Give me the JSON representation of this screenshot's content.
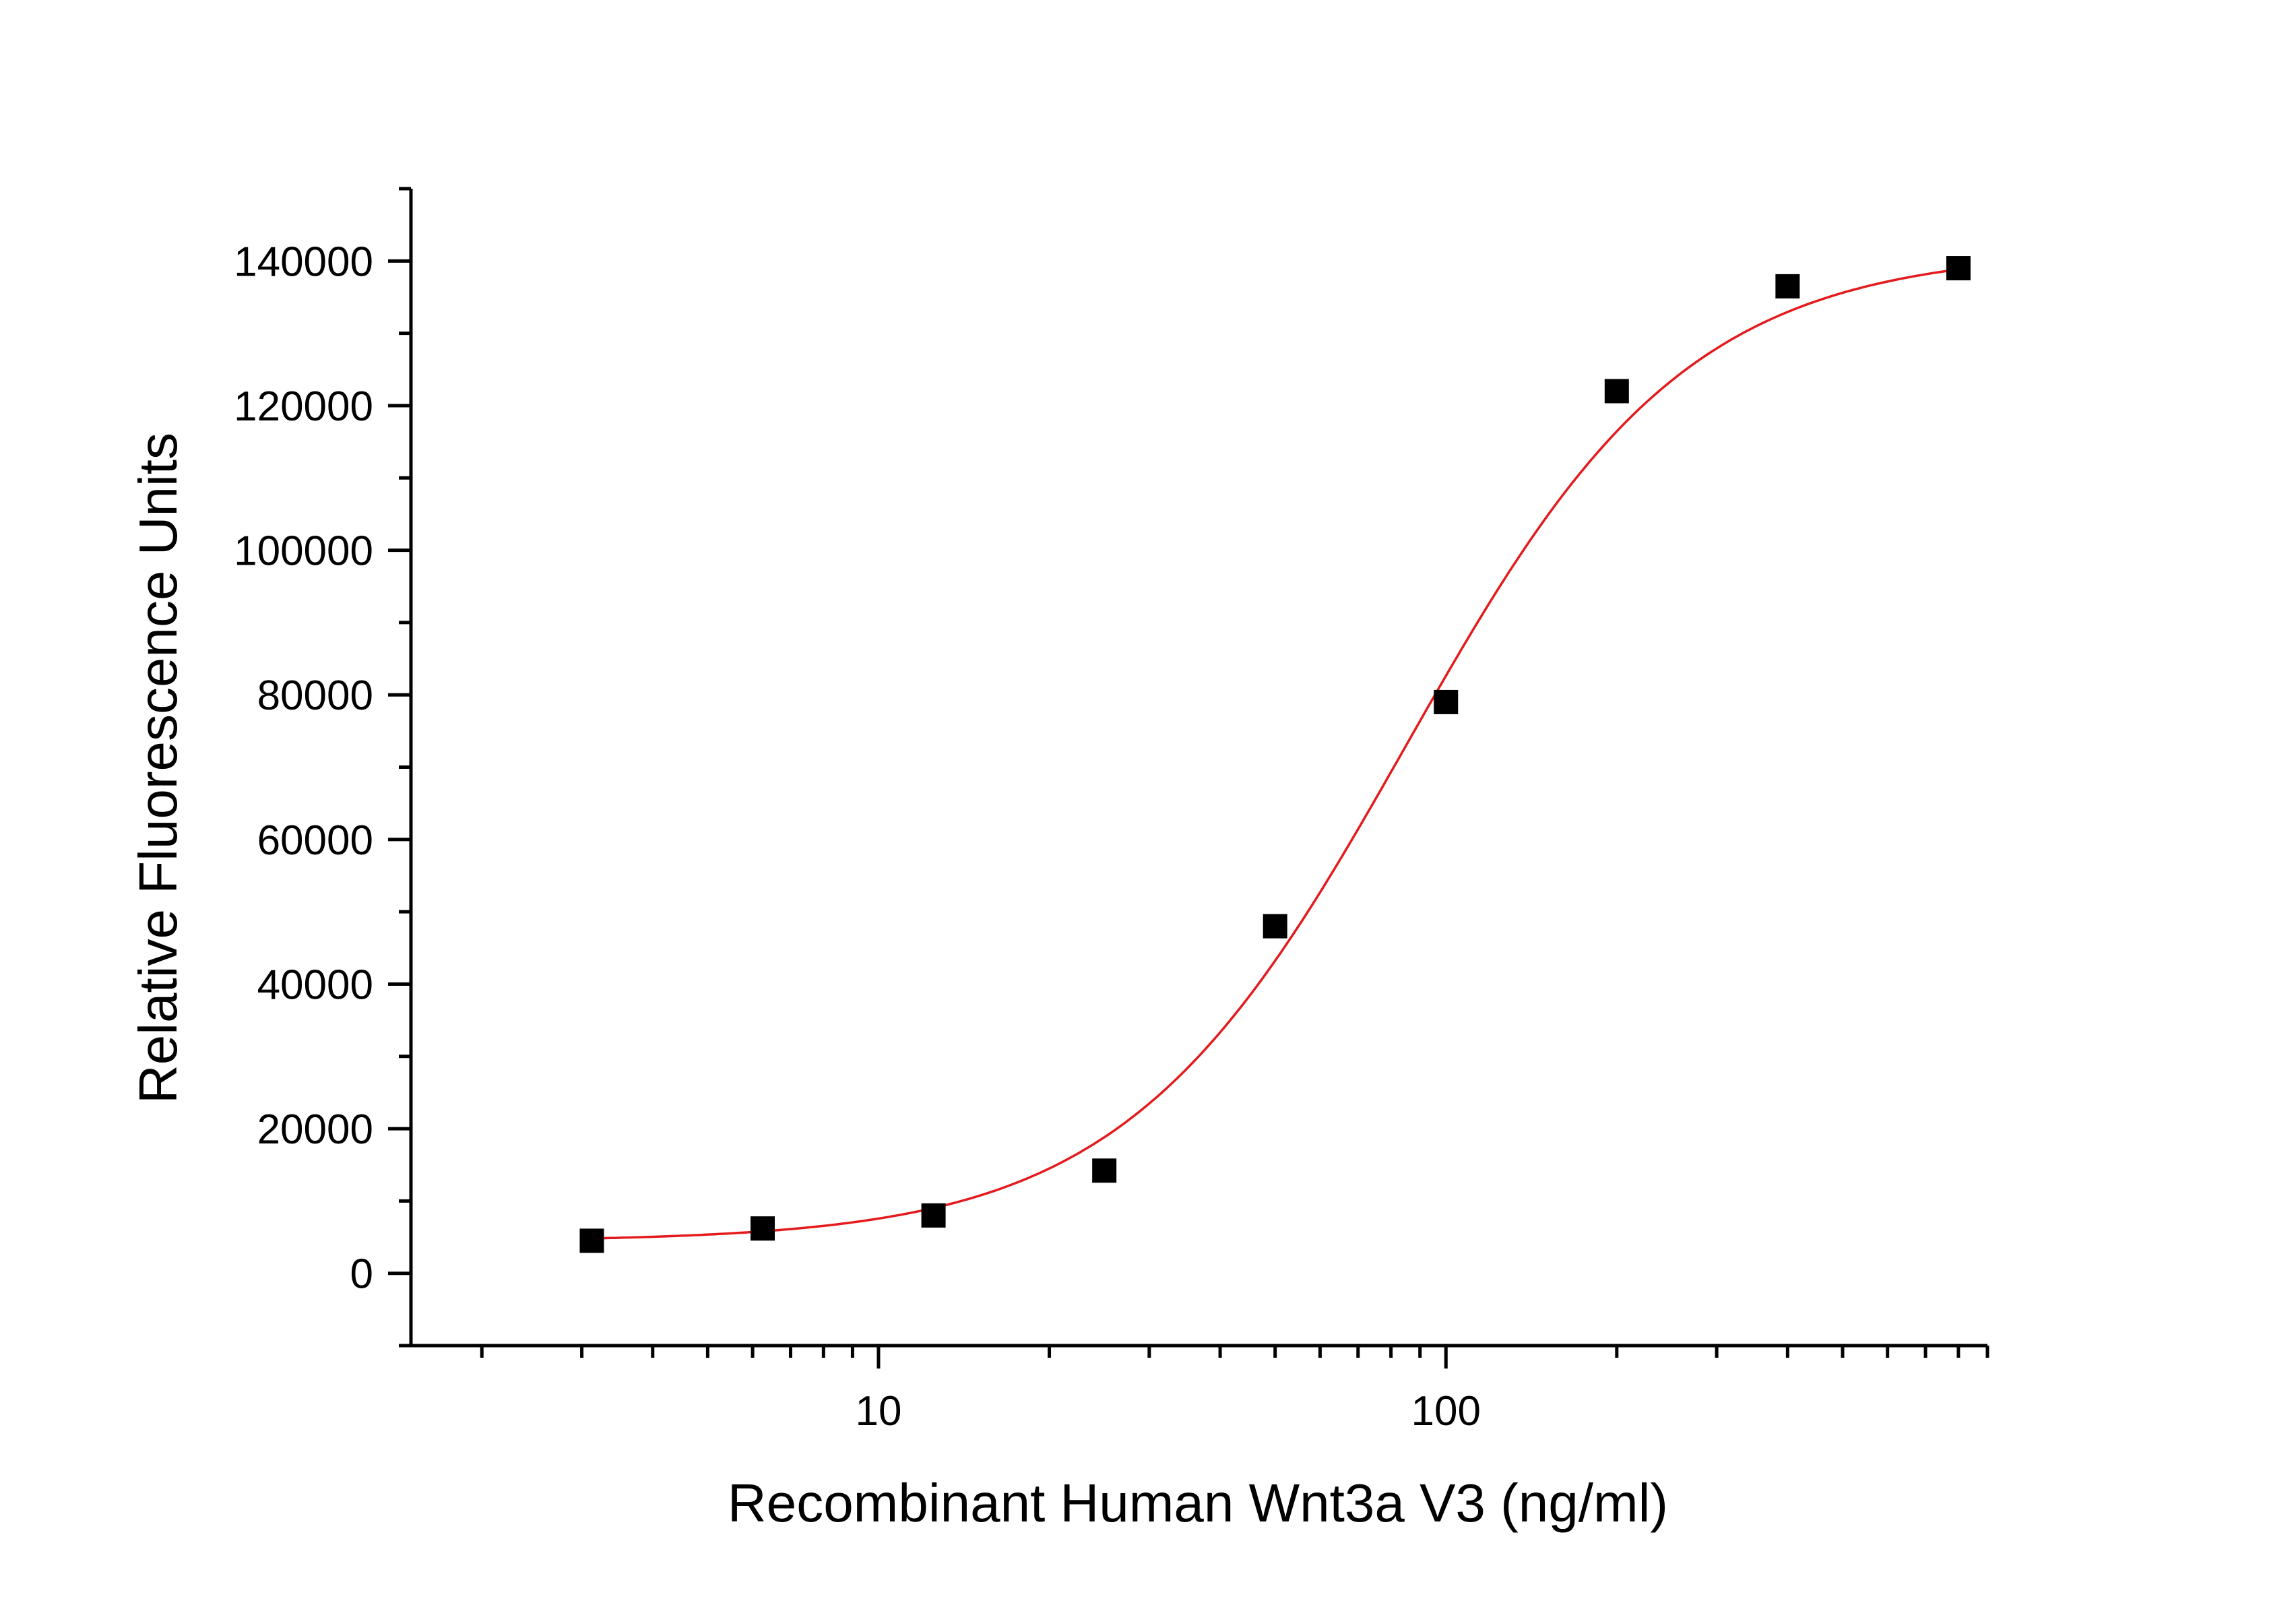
{
  "chart_data": {
    "type": "scatter",
    "title": "",
    "xlabel": "Recombinant Human Wnt3a V3 (ng/ml)",
    "ylabel": "Relative Fluorescence Units",
    "x_scale": "log",
    "xlim": [
      1.5,
      900
    ],
    "ylim": [
      -10000,
      150000
    ],
    "x_ticks": [
      10,
      100
    ],
    "x_tick_labels": [
      "10",
      "100"
    ],
    "y_ticks": [
      0,
      20000,
      40000,
      60000,
      80000,
      100000,
      120000,
      140000
    ],
    "y_tick_labels": [
      "0",
      "20000",
      "40000",
      "60000",
      "80000",
      "100000",
      "120000",
      "140000"
    ],
    "grid": false,
    "legend": "none",
    "series": [
      {
        "marker": "square",
        "color": "#000000",
        "x": [
          3.125,
          6.25,
          12.5,
          25,
          50,
          100,
          200,
          400,
          800
        ],
        "y": [
          4500,
          6200,
          8000,
          14200,
          48000,
          79000,
          122000,
          136500,
          139000
        ]
      },
      {
        "kind": "fit-curve",
        "color": "#e41a1c",
        "model": "4PL",
        "bottom": 4400,
        "top": 141500,
        "ec50": 85,
        "hill": 1.75,
        "x_range": [
          3.125,
          800
        ]
      }
    ]
  }
}
